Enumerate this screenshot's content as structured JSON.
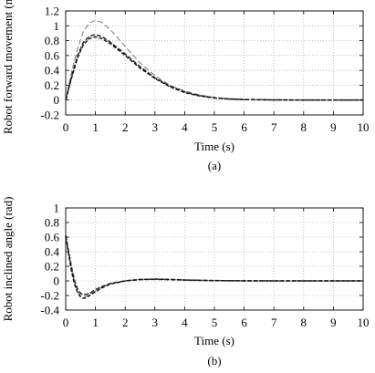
{
  "chart_data": [
    {
      "type": "line",
      "caption": "(a)",
      "xlabel": "Time (s)",
      "ylabel": "Robot forward movement (m)",
      "xlim": [
        0,
        10
      ],
      "ylim": [
        -0.2,
        1.2
      ],
      "x_ticks": [
        "0",
        "1",
        "2",
        "3",
        "4",
        "5",
        "6",
        "7",
        "8",
        "9",
        "10"
      ],
      "y_ticks": [
        "-0.2",
        "0",
        "0.2",
        "0.4",
        "0.6",
        "0.8",
        "1",
        "1.2"
      ],
      "grid": true,
      "series": [
        {
          "style": "dashed",
          "x": [
            0,
            0.2,
            0.4,
            0.6,
            0.8,
            1.0,
            1.2,
            1.5,
            2.0,
            2.5,
            3.0,
            3.5,
            4.0,
            4.5,
            5.0,
            5.5,
            6.0,
            7.0,
            8.0,
            9.0,
            10.0
          ],
          "y": [
            0,
            0.38,
            0.7,
            0.93,
            1.04,
            1.07,
            1.05,
            0.95,
            0.72,
            0.5,
            0.33,
            0.2,
            0.12,
            0.07,
            0.035,
            0.018,
            0.008,
            0.002,
            0,
            0,
            0
          ]
        },
        {
          "style": "dashed",
          "x": [
            0,
            0.2,
            0.4,
            0.6,
            0.8,
            1.0,
            1.2,
            1.5,
            2.0,
            2.5,
            3.0,
            3.5,
            4.0,
            4.5,
            5.0,
            5.5,
            6.0,
            7.0,
            8.0,
            9.0,
            10.0
          ],
          "y": [
            0,
            0.32,
            0.6,
            0.78,
            0.86,
            0.88,
            0.86,
            0.78,
            0.62,
            0.45,
            0.3,
            0.19,
            0.11,
            0.06,
            0.03,
            0.015,
            0.007,
            0.002,
            0,
            0,
            0
          ]
        },
        {
          "style": "dashed",
          "x": [
            0,
            0.2,
            0.4,
            0.6,
            0.8,
            1.0,
            1.2,
            1.5,
            2.0,
            2.5,
            3.0,
            3.5,
            4.0,
            4.5,
            5.0,
            5.5,
            6.0,
            7.0,
            8.0,
            9.0,
            10.0
          ],
          "y": [
            0,
            0.3,
            0.57,
            0.75,
            0.83,
            0.85,
            0.83,
            0.76,
            0.6,
            0.43,
            0.29,
            0.18,
            0.1,
            0.055,
            0.028,
            0.014,
            0.006,
            0.002,
            0,
            0,
            0
          ]
        }
      ]
    },
    {
      "type": "line",
      "caption": "(b)",
      "xlabel": "Time (s)",
      "ylabel": "Robot inclined angle (rad)",
      "xlim": [
        0,
        10
      ],
      "ylim": [
        -0.4,
        1
      ],
      "x_ticks": [
        "0",
        "1",
        "2",
        "3",
        "4",
        "5",
        "6",
        "7",
        "8",
        "9",
        "10"
      ],
      "y_ticks": [
        "-0.4",
        "-0.2",
        "0",
        "0.2",
        "0.4",
        "0.6",
        "0.8",
        "1"
      ],
      "grid": true,
      "series": [
        {
          "style": "dashed",
          "x": [
            0,
            0.1,
            0.2,
            0.3,
            0.4,
            0.5,
            0.6,
            0.7,
            0.8,
            1.0,
            1.2,
            1.5,
            2.0,
            2.5,
            3.0,
            3.5,
            4.0,
            5.0,
            6.0,
            7.0,
            8.0,
            9.0,
            10.0
          ],
          "y": [
            0.62,
            0.38,
            0.15,
            -0.03,
            -0.14,
            -0.2,
            -0.22,
            -0.21,
            -0.19,
            -0.14,
            -0.09,
            -0.04,
            0.0,
            0.02,
            0.025,
            0.02,
            0.013,
            0.005,
            0.001,
            0,
            0,
            0,
            0
          ]
        },
        {
          "style": "dashed",
          "x": [
            0,
            0.1,
            0.2,
            0.3,
            0.4,
            0.5,
            0.6,
            0.7,
            0.8,
            1.0,
            1.2,
            1.5,
            2.0,
            2.5,
            3.0,
            3.5,
            4.0,
            5.0,
            6.0,
            7.0,
            8.0,
            9.0,
            10.0
          ],
          "y": [
            0.62,
            0.4,
            0.18,
            0.0,
            -0.11,
            -0.17,
            -0.19,
            -0.185,
            -0.17,
            -0.12,
            -0.08,
            -0.035,
            0.0,
            0.018,
            0.022,
            0.018,
            0.011,
            0.004,
            0.001,
            0,
            0,
            0,
            0
          ]
        },
        {
          "style": "dashed",
          "x": [
            0,
            0.1,
            0.2,
            0.3,
            0.4,
            0.5,
            0.6,
            0.7,
            0.8,
            1.0,
            1.2,
            1.5,
            2.0,
            2.5,
            3.0,
            3.5,
            4.0,
            5.0,
            6.0,
            7.0,
            8.0,
            9.0,
            10.0
          ],
          "y": [
            0.62,
            0.36,
            0.12,
            -0.05,
            -0.16,
            -0.22,
            -0.24,
            -0.23,
            -0.2,
            -0.15,
            -0.1,
            -0.045,
            0.0,
            0.02,
            0.025,
            0.02,
            0.012,
            0.004,
            0.001,
            0,
            0,
            0,
            0
          ]
        }
      ]
    }
  ]
}
